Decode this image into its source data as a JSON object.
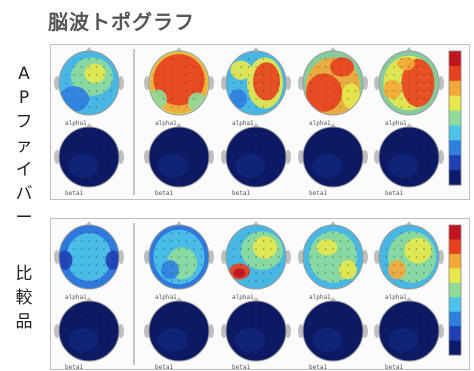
{
  "title": "脳波トポグラフ",
  "groups": [
    {
      "label": [
        "A",
        "P",
        "フ",
        "ァ",
        "イ",
        "バ",
        "ー"
      ],
      "caption_row1": [
        "alpha1",
        "alpha1",
        "alpha1",
        "alpha1",
        "alpha1"
      ],
      "caption_row2": [
        "beta1",
        "beta1",
        "beta1",
        "beta1",
        "beta1"
      ]
    },
    {
      "label": [
        "比",
        "較",
        "品"
      ],
      "caption_row1": [
        "alpha1",
        "alpha1",
        "alpha1",
        "alpha1",
        "alpha1"
      ],
      "caption_row2": [
        "beta1",
        "beta1",
        "beta1",
        "beta1",
        "beta1"
      ]
    }
  ],
  "colors": {
    "scale": [
      "#0d1b6e",
      "#1f3fb5",
      "#2f7fe0",
      "#4cc4e8",
      "#8fdc9a",
      "#e8e84a",
      "#f4a83a",
      "#e8401e",
      "#c0141e"
    ],
    "deep_blue": "#0c1a66"
  }
}
